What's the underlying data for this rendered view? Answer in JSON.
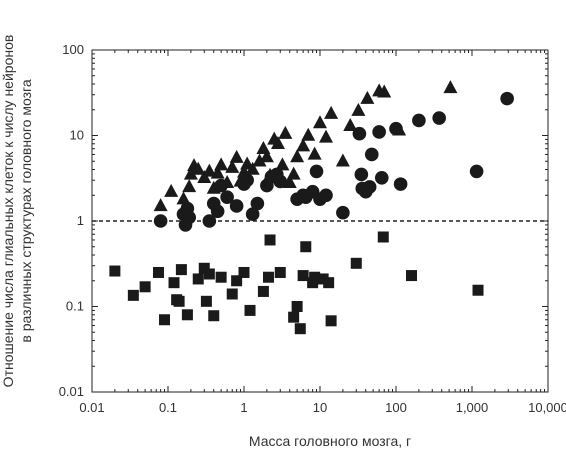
{
  "chart_data": {
    "type": "scatter",
    "xlabel": "Масса головного мозга, г",
    "ylabel_lines": [
      "Отношение числа глиальных клеток к числу нейронов",
      "в различных структурах головного мозга"
    ],
    "xscale": "log",
    "yscale": "log",
    "xlim": [
      0.01,
      10000
    ],
    "ylim": [
      0.01,
      100
    ],
    "x_ticks": [
      {
        "value": 0.01,
        "label": "0.01"
      },
      {
        "value": 0.1,
        "label": "0.1"
      },
      {
        "value": 1,
        "label": "1"
      },
      {
        "value": 10,
        "label": "10"
      },
      {
        "value": 100,
        "label": "100"
      },
      {
        "value": 1000,
        "label": "1,000"
      },
      {
        "value": 10000,
        "label": "10,000"
      }
    ],
    "y_ticks": [
      {
        "value": 0.01,
        "label": "0.01"
      },
      {
        "value": 0.1,
        "label": "0.1"
      },
      {
        "value": 1,
        "label": "1"
      },
      {
        "value": 10,
        "label": "10"
      },
      {
        "value": 100,
        "label": "100"
      }
    ],
    "reference_line": {
      "y": 1,
      "style": "dashed"
    },
    "grid": false,
    "marker_color": "#1a1a1a",
    "series": [
      {
        "marker": "triangle",
        "points": [
          [
            0.08,
            1.5
          ],
          [
            0.11,
            2.2
          ],
          [
            0.16,
            1.8
          ],
          [
            0.19,
            2.5
          ],
          [
            0.2,
            3.5
          ],
          [
            0.22,
            4.4
          ],
          [
            0.25,
            4.0
          ],
          [
            0.3,
            3.2
          ],
          [
            0.35,
            3.8
          ],
          [
            0.4,
            2.4
          ],
          [
            0.45,
            3.6
          ],
          [
            0.5,
            4.5
          ],
          [
            0.6,
            2.8
          ],
          [
            0.7,
            4.2
          ],
          [
            0.8,
            5.5
          ],
          [
            0.9,
            2.9
          ],
          [
            1.0,
            3.7
          ],
          [
            1.1,
            4.6
          ],
          [
            1.3,
            4.0
          ],
          [
            1.6,
            5.0
          ],
          [
            1.8,
            7.0
          ],
          [
            2.0,
            5.6
          ],
          [
            2.2,
            3.4
          ],
          [
            2.5,
            9.0
          ],
          [
            2.8,
            8.0
          ],
          [
            3.2,
            4.5
          ],
          [
            3.5,
            10.5
          ],
          [
            4.0,
            2.8
          ],
          [
            4.5,
            3.5
          ],
          [
            5.0,
            5.6
          ],
          [
            6.0,
            7.5
          ],
          [
            7.0,
            10.0
          ],
          [
            8.5,
            6.0
          ],
          [
            10,
            14.0
          ],
          [
            12,
            9.5
          ],
          [
            14,
            18.0
          ],
          [
            20,
            5.0
          ],
          [
            25,
            13.0
          ],
          [
            32,
            19.5
          ],
          [
            42,
            27.0
          ],
          [
            60,
            33.0
          ],
          [
            70,
            32.0
          ],
          [
            110,
            11.5
          ],
          [
            520,
            36.0
          ]
        ]
      },
      {
        "marker": "circle",
        "points": [
          [
            0.08,
            1.0
          ],
          [
            0.16,
            1.2
          ],
          [
            0.17,
            0.9
          ],
          [
            0.18,
            1.4
          ],
          [
            0.19,
            1.1
          ],
          [
            0.35,
            1.0
          ],
          [
            0.4,
            1.6
          ],
          [
            0.45,
            1.3
          ],
          [
            0.5,
            2.6
          ],
          [
            0.6,
            1.9
          ],
          [
            0.8,
            1.5
          ],
          [
            1.0,
            2.7
          ],
          [
            1.1,
            3.0
          ],
          [
            1.3,
            1.2
          ],
          [
            1.5,
            1.6
          ],
          [
            2.0,
            2.6
          ],
          [
            2.3,
            3.3
          ],
          [
            2.7,
            3.5
          ],
          [
            3.0,
            2.9
          ],
          [
            5.0,
            1.8
          ],
          [
            6.0,
            2.0
          ],
          [
            6.5,
            1.9
          ],
          [
            8.0,
            2.2
          ],
          [
            9.0,
            3.8
          ],
          [
            10,
            1.8
          ],
          [
            12,
            2.0
          ],
          [
            20,
            1.25
          ],
          [
            33,
            10.5
          ],
          [
            35,
            3.5
          ],
          [
            36,
            2.4
          ],
          [
            40,
            2.2
          ],
          [
            45,
            2.5
          ],
          [
            48,
            6.0
          ],
          [
            60,
            11.0
          ],
          [
            65,
            3.2
          ],
          [
            100,
            12.0
          ],
          [
            115,
            2.7
          ],
          [
            200,
            15.0
          ],
          [
            370,
            16.0
          ],
          [
            1150,
            3.8
          ],
          [
            2900,
            27.0
          ]
        ]
      },
      {
        "marker": "square",
        "points": [
          [
            0.02,
            0.26
          ],
          [
            0.035,
            0.135
          ],
          [
            0.05,
            0.17
          ],
          [
            0.075,
            0.25
          ],
          [
            0.09,
            0.07
          ],
          [
            0.12,
            0.19
          ],
          [
            0.13,
            0.12
          ],
          [
            0.14,
            0.115
          ],
          [
            0.15,
            0.27
          ],
          [
            0.18,
            0.08
          ],
          [
            0.25,
            0.21
          ],
          [
            0.3,
            0.28
          ],
          [
            0.32,
            0.115
          ],
          [
            0.35,
            0.24
          ],
          [
            0.4,
            0.078
          ],
          [
            0.5,
            0.22
          ],
          [
            0.7,
            0.14
          ],
          [
            0.8,
            0.2
          ],
          [
            1.0,
            0.25
          ],
          [
            1.2,
            0.09
          ],
          [
            1.8,
            0.15
          ],
          [
            2.1,
            0.22
          ],
          [
            2.2,
            0.6
          ],
          [
            3.0,
            0.25
          ],
          [
            4.5,
            0.075
          ],
          [
            5.0,
            0.1
          ],
          [
            5.5,
            0.055
          ],
          [
            6.0,
            0.23
          ],
          [
            6.5,
            0.5
          ],
          [
            8.0,
            0.19
          ],
          [
            8.5,
            0.22
          ],
          [
            11,
            0.21
          ],
          [
            13,
            0.19
          ],
          [
            14,
            0.068
          ],
          [
            30,
            0.32
          ],
          [
            68,
            0.65
          ],
          [
            160,
            0.23
          ],
          [
            1200,
            0.155
          ]
        ]
      }
    ]
  }
}
